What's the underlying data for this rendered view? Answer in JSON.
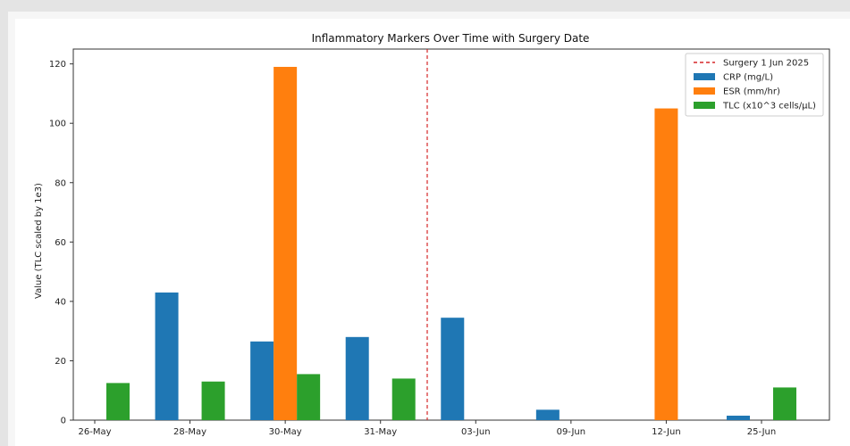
{
  "chart_data": {
    "type": "bar",
    "title": "Inflammatory Markers Over Time with Surgery Date",
    "xlabel": "",
    "ylabel": "Value (TLC scaled by 1e3)",
    "ylim": [
      0,
      125
    ],
    "yticks": [
      0,
      20,
      40,
      60,
      80,
      100,
      120
    ],
    "categories": [
      "26-May",
      "28-May",
      "30-May",
      "31-May",
      "03-Jun",
      "09-Jun",
      "12-Jun",
      "25-Jun"
    ],
    "series": [
      {
        "name": "CRP (mg/L)",
        "color": "#1f77b4",
        "values": [
          null,
          43,
          26.5,
          28,
          34.5,
          3.5,
          null,
          1.5
        ]
      },
      {
        "name": "ESR (mm/hr)",
        "color": "#ff7f0e",
        "values": [
          null,
          null,
          119,
          null,
          null,
          null,
          105,
          null
        ]
      },
      {
        "name": "TLC (x10^3 cells/μL)",
        "color": "#2ca02c",
        "values": [
          12.5,
          13,
          15.5,
          14,
          null,
          null,
          null,
          11
        ]
      }
    ],
    "annotations": [
      {
        "type": "vline",
        "label": "Surgery 1 Jun 2025",
        "between": [
          "31-May",
          "03-Jun"
        ],
        "color": "#d62728",
        "style": "dashed"
      }
    ],
    "legend_position": "top-right",
    "grid": false
  }
}
